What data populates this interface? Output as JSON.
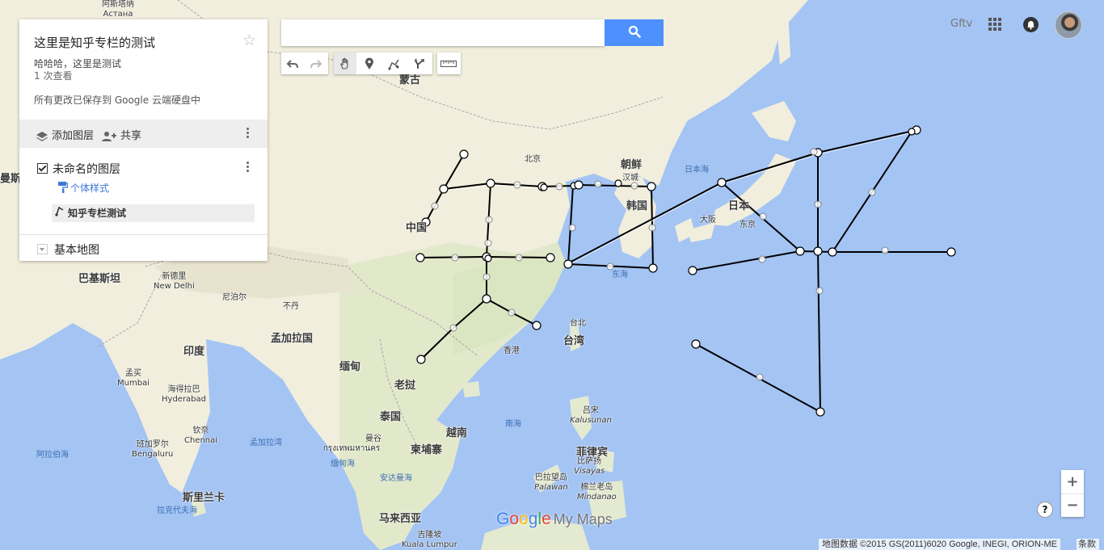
{
  "panel": {
    "title": "这里是知乎专栏的测试",
    "description": "哈哈哈，这里是测试",
    "views": "1 次查看",
    "saved_status": "所有更改已保存到 Google 云端硬盘中",
    "add_layer_label": "添加图层",
    "share_label": "共享",
    "layer": {
      "name": "未命名的图层",
      "style_link": "个体样式",
      "feature": "知乎专栏测试"
    },
    "base_map_label": "基本地图"
  },
  "search": {
    "value": "",
    "button_icon": "search-icon"
  },
  "toolbar": {
    "tools": [
      "undo-icon",
      "redo-icon",
      "hand-icon",
      "marker-icon",
      "draw-line-icon",
      "directions-icon",
      "ruler-icon"
    ],
    "active_tool": "hand-icon"
  },
  "account": {
    "name": "Gftv",
    "apps_icon": "apps-grid-icon",
    "notifications_icon": "bell-icon"
  },
  "zoom": {
    "in": "+",
    "out": "−"
  },
  "help": "?",
  "logo": {
    "google": "Google",
    "product": "My Maps"
  },
  "attribution": "地图数据 ©2015 GS(2011)6020 Google, INEGI, ORION-ME",
  "terms": "条款",
  "colors": {
    "water": "#a4c4f4",
    "land": "#f1eedd",
    "route": "#000000",
    "accent": "#4d90fe"
  },
  "map_labels": {
    "astana": "Астана",
    "astana_cn": "阿斯塔纳",
    "mongolia": "蒙古",
    "beijing": "北京",
    "china": "中国",
    "korea_n": "朝鲜",
    "seoul": "汉城",
    "korea_s": "韩国",
    "japan": "日本",
    "tokyo": "东京",
    "osaka": "大阪",
    "sea_japan": "日本海",
    "east_sea": "东海",
    "shanghai": "上海",
    "taipei": "台北",
    "taiwan": "台湾",
    "hongkong": "香港",
    "south_sea": "南海",
    "pakistan": "巴基斯坦",
    "new_delhi_cn": "新德里",
    "new_delhi": "New Delhi",
    "nepal": "尼泊尔",
    "bhutan": "不丹",
    "bangladesh": "孟加拉国",
    "india": "印度",
    "myanmar": "缅甸",
    "laos": "老挝",
    "thailand": "泰国",
    "vietnam": "越南",
    "cambodia": "柬埔寨",
    "bangkok_cn": "曼谷",
    "bangkok": "กรุงเทพมหานคร",
    "mumbai_cn": "孟买",
    "mumbai": "Mumbai",
    "hyderabad_cn": "海得拉巴",
    "hyderabad": "Hyderabad",
    "chennai_cn": "钦奈",
    "chennai": "Chennai",
    "bengaluru_cn": "班加罗尔",
    "bengaluru": "Bengaluru",
    "arabian_sea": "阿拉伯海",
    "bay_bengal": "孟加拉湾",
    "andaman": "缅甸海",
    "andaman2": "安达曼海",
    "srilanka": "斯里兰卡",
    "laccadive": "拉克代夫海",
    "malaysia": "马来西亚",
    "kl_cn": "吉隆坡",
    "kl": "Kuala Lumpur",
    "philippines": "菲律宾",
    "visayas_cn": "比萨扬",
    "visayas": "Visayas",
    "luzon_cn": "吕宋",
    "kalusunan": "Kalusunan",
    "palawan_cn": "巴拉望岛",
    "palawan": "Palawan",
    "mindanao_cn": "棉兰老岛",
    "mindanao": "Mindanao",
    "iran": "曼斯"
  }
}
